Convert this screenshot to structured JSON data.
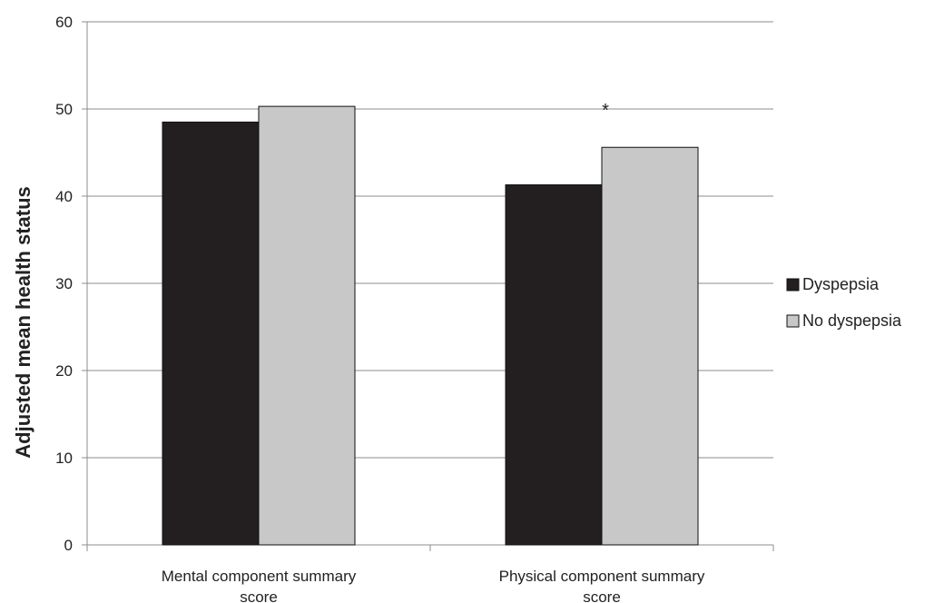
{
  "chart_data": {
    "type": "bar",
    "categories": [
      [
        "Mental component summary",
        "score"
      ],
      [
        "Physical component summary",
        "score"
      ]
    ],
    "series": [
      {
        "name": "Dyspepsia",
        "values": [
          48.5,
          41.3
        ],
        "color": "#231f20"
      },
      {
        "name": "No dyspepsia",
        "values": [
          50.3,
          45.6
        ],
        "color": "#c8c8c8"
      }
    ],
    "ylabel": "Adjusted mean health status",
    "xlabel": "",
    "ylim": [
      0,
      60
    ],
    "yticks": [
      "0",
      "10",
      "20",
      "30",
      "40",
      "50",
      "60"
    ],
    "grid": true,
    "legend_position": "right",
    "annotations": [
      {
        "text": "*",
        "category_index": 1
      }
    ]
  }
}
